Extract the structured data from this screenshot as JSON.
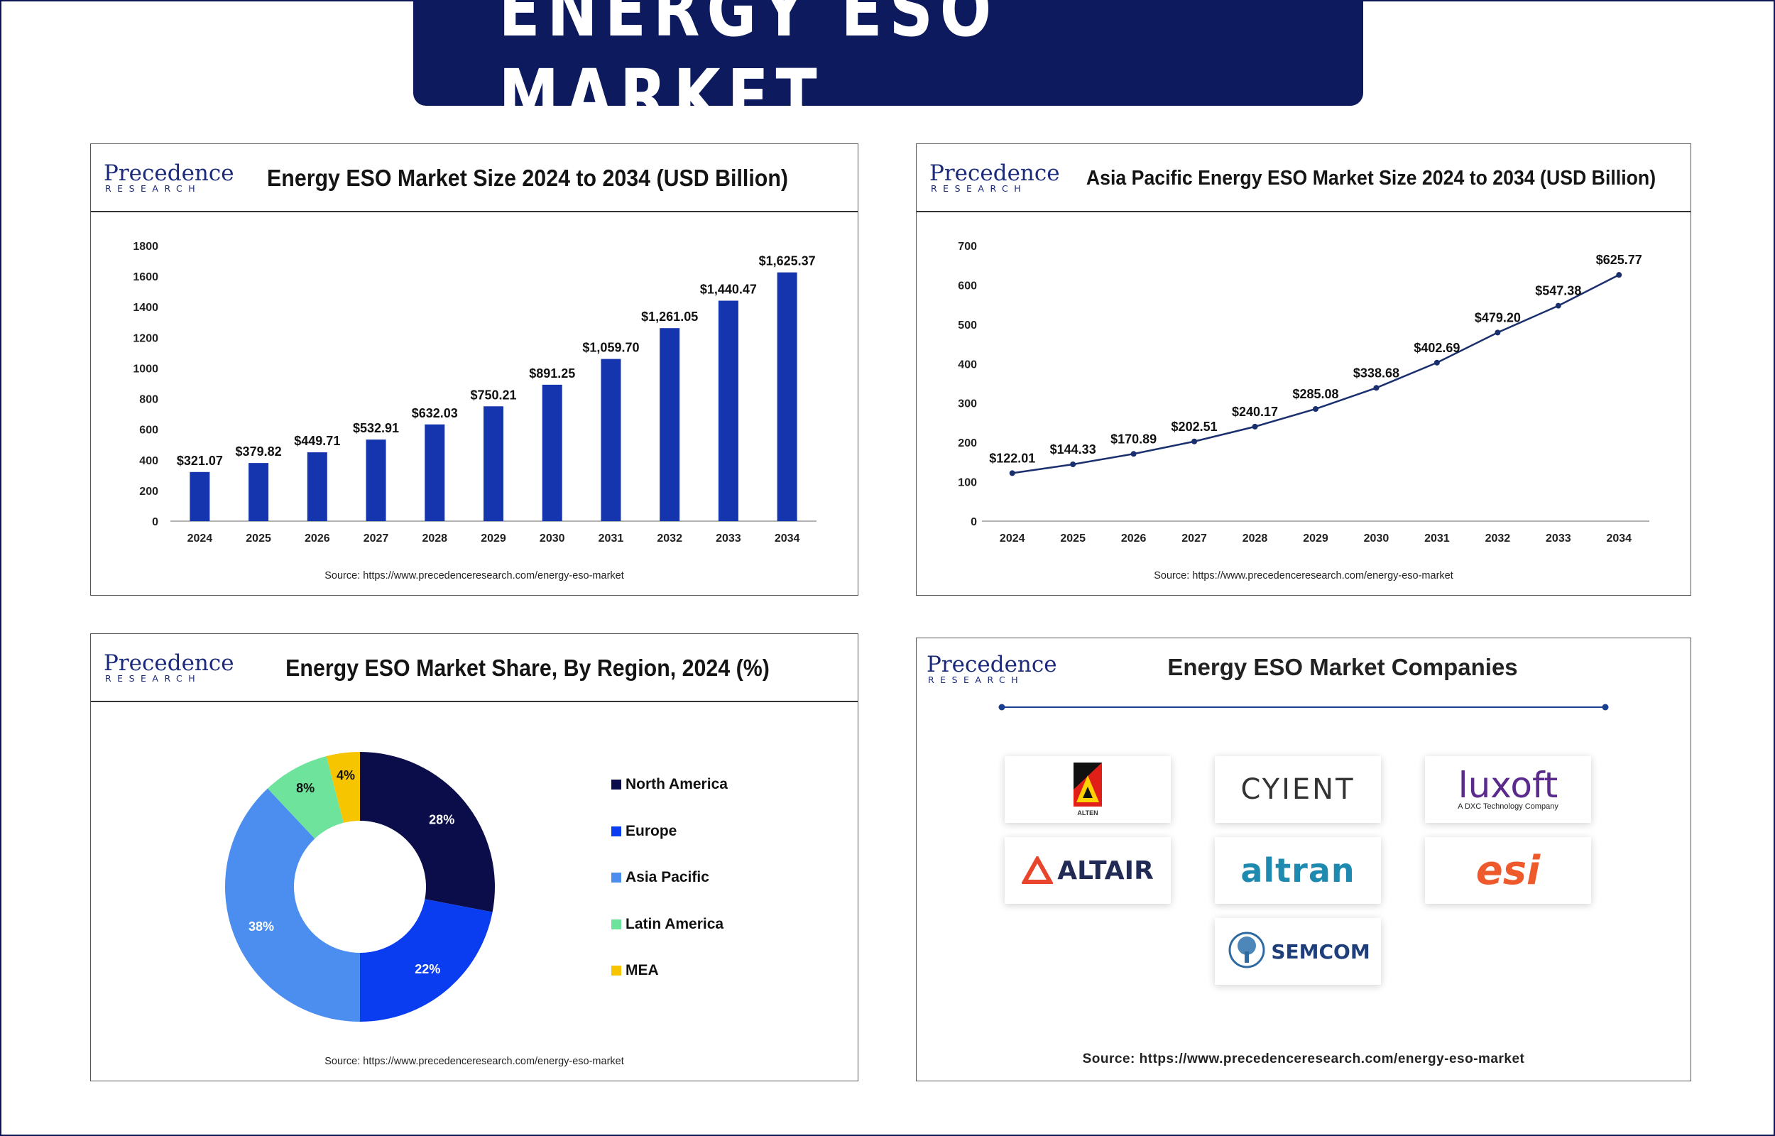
{
  "main_title": "ENERGY ESO MARKET",
  "logo": {
    "line1": "Precedence",
    "line2": "RESEARCH"
  },
  "source_text": "Source: https://www.precedenceresearch.com/energy-eso-market",
  "colors": {
    "navy": "#0d1b5e",
    "bar": "#1535ae",
    "line": "#1a2f6e"
  },
  "panels": {
    "market_size": {
      "title": "Energy ESO Market Size 2024 to 2034 (USD Billion)"
    },
    "apac": {
      "title": "Asia Pacific Energy ESO Market Size 2024 to 2034 (USD Billion)"
    },
    "region": {
      "title": "Energy ESO Market Share, By Region, 2024 (%)"
    },
    "companies": {
      "title": "Energy ESO Market Companies",
      "items": [
        {
          "name": "ALTEN",
          "icon": "alten-logo"
        },
        {
          "name": "CYIENT",
          "icon": "cyient-logo"
        },
        {
          "name": "luxoft",
          "tagline": "A DXC Technology Company",
          "icon": "luxoft-logo"
        },
        {
          "name": "ALTAIR",
          "icon": "altair-logo"
        },
        {
          "name": "altran",
          "icon": "altran-logo"
        },
        {
          "name": "esi",
          "icon": "esi-logo"
        },
        {
          "name": "SEMCOM",
          "icon": "semcom-logo"
        }
      ]
    }
  },
  "chart_data": [
    {
      "type": "bar",
      "title": "Energy ESO Market Size 2024 to 2034 (USD Billion)",
      "categories": [
        "2024",
        "2025",
        "2026",
        "2027",
        "2028",
        "2029",
        "2030",
        "2031",
        "2032",
        "2033",
        "2034"
      ],
      "values": [
        321.07,
        379.82,
        449.71,
        532.91,
        632.03,
        750.21,
        891.25,
        1059.7,
        1261.05,
        1440.47,
        1625.37
      ],
      "value_labels": [
        "$321.07",
        "$379.82",
        "$449.71",
        "$532.91",
        "$632.03",
        "$750.21",
        "$891.25",
        "$1,059.70",
        "$1,261.05",
        "$1,440.47",
        "$1,625.37"
      ],
      "yticks": [
        "0",
        "200",
        "400",
        "600",
        "800",
        "1000",
        "1200",
        "1400",
        "1600",
        "1800"
      ],
      "ylim": [
        0,
        1800
      ],
      "grid": false
    },
    {
      "type": "line",
      "title": "Asia Pacific Energy ESO Market Size 2024 to 2034 (USD Billion)",
      "categories": [
        "2024",
        "2025",
        "2026",
        "2027",
        "2028",
        "2029",
        "2030",
        "2031",
        "2032",
        "2033",
        "2034"
      ],
      "values": [
        122.01,
        144.33,
        170.89,
        202.51,
        240.17,
        285.08,
        338.68,
        402.69,
        479.2,
        547.38,
        625.77
      ],
      "value_labels": [
        "$122.01",
        "$144.33",
        "$170.89",
        "$202.51",
        "$240.17",
        "$285.08",
        "$338.68",
        "$402.69",
        "$479.20",
        "$547.38",
        "$625.77"
      ],
      "yticks": [
        "0",
        "100",
        "200",
        "300",
        "400",
        "500",
        "600",
        "700"
      ],
      "ylim": [
        0,
        700
      ],
      "grid": false
    },
    {
      "type": "pie",
      "title": "Energy ESO Market Share, By Region, 2024 (%)",
      "labels": [
        "North America",
        "Europe",
        "Asia Pacific",
        "Latin America",
        "MEA"
      ],
      "values": [
        28,
        22,
        38,
        8,
        4
      ],
      "value_labels": [
        "28%",
        "22%",
        "38%",
        "8%",
        "4%"
      ],
      "colors": [
        "#0b0c4a",
        "#0a3cf0",
        "#4b8ef0",
        "#6ee39c",
        "#f7c500"
      ],
      "label_colors": [
        "#ffffff",
        "#ffffff",
        "#ffffff",
        "#111111",
        "#111111"
      ],
      "legend_position": "right",
      "donut": true
    }
  ]
}
